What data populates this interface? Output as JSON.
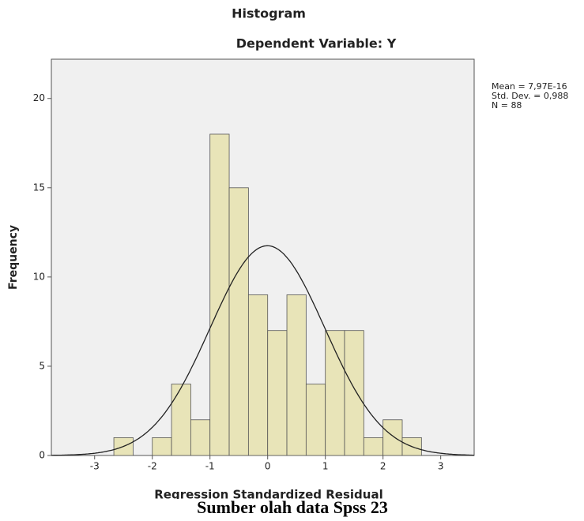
{
  "chart_data": {
    "type": "histogram",
    "title": "Histogram",
    "subtitle": "Dependent Variable: Y",
    "x_label": "Regression Standardized Residual",
    "y_label": "Frequency",
    "bins": [
      -2.6667,
      -2.3333,
      -2,
      -1.6667,
      -1.3333,
      -1,
      -0.6667,
      -0.3333,
      0,
      0.3333,
      0.6667,
      1,
      1.3333,
      1.6667,
      2,
      2.3333,
      2.6667
    ],
    "values": [
      1,
      0,
      1,
      4,
      2,
      18,
      15,
      9,
      7,
      9,
      4,
      7,
      7,
      1,
      2,
      1
    ],
    "color": "#e8e4b8",
    "xlim": [
      -3.75,
      3.58
    ],
    "xticks": [
      -3,
      -2,
      -1,
      0,
      1,
      2,
      3
    ],
    "ylim": [
      0,
      22.2
    ],
    "yticks": [
      0,
      5,
      10,
      15,
      20
    ],
    "stats": [
      "Mean = 7,97E-16",
      "Std. Dev. = 0,988",
      "N = 88"
    ],
    "caption": "Sumber olah data Spss 23"
  }
}
